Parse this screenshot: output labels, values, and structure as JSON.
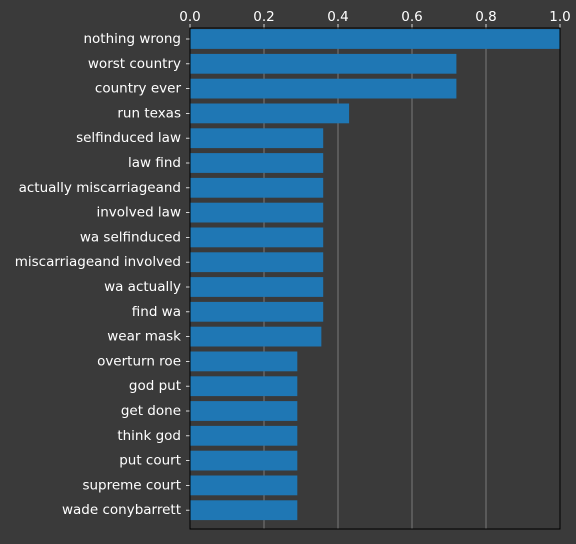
{
  "colors": {
    "background": "#3a3a3a",
    "bar": "#1f77b4",
    "grid": "#8a8a8a",
    "axis": "#000000",
    "text": "#ffffff"
  },
  "chart_data": {
    "type": "bar",
    "orientation": "horizontal",
    "x_axis_position": "top",
    "grid": "vertical",
    "xlim": [
      0,
      1.0
    ],
    "xticks": [
      "0.0",
      "0.2",
      "0.4",
      "0.6",
      "0.8",
      "1.0"
    ],
    "xtick_values": [
      0,
      0.2,
      0.4,
      0.6,
      0.8,
      1.0
    ],
    "categories": [
      "nothing wrong",
      "worst country",
      "country ever",
      "run texas",
      "selfinduced law",
      "law find",
      "actually miscarriageand",
      "involved law",
      "wa selfinduced",
      "miscarriageand involved",
      "wa actually",
      "find wa",
      "wear mask",
      "overturn roe",
      "god put",
      "get done",
      "think god",
      "put court",
      "supreme court",
      "wade conybarrett"
    ],
    "values": [
      1.0,
      0.72,
      0.72,
      0.43,
      0.36,
      0.36,
      0.36,
      0.36,
      0.36,
      0.36,
      0.36,
      0.36,
      0.355,
      0.29,
      0.29,
      0.29,
      0.29,
      0.29,
      0.29,
      0.29
    ]
  }
}
